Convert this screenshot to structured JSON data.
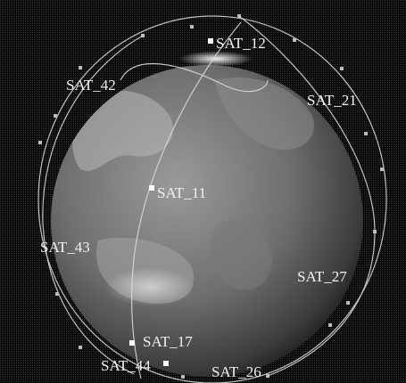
{
  "scene": {
    "satellites": [
      {
        "label": "SAT_12"
      },
      {
        "label": "SAT_42"
      },
      {
        "label": "SAT_21"
      },
      {
        "label": "SAT_11"
      },
      {
        "label": "SAT_43"
      },
      {
        "label": "SAT_27"
      },
      {
        "label": "SAT_17"
      },
      {
        "label": "SAT_44"
      },
      {
        "label": "SAT_26"
      }
    ],
    "colors": {
      "background": "#000000",
      "orbit": "#d8d8d8",
      "label": "#f2f2f2",
      "marker": "#ffffff"
    }
  }
}
